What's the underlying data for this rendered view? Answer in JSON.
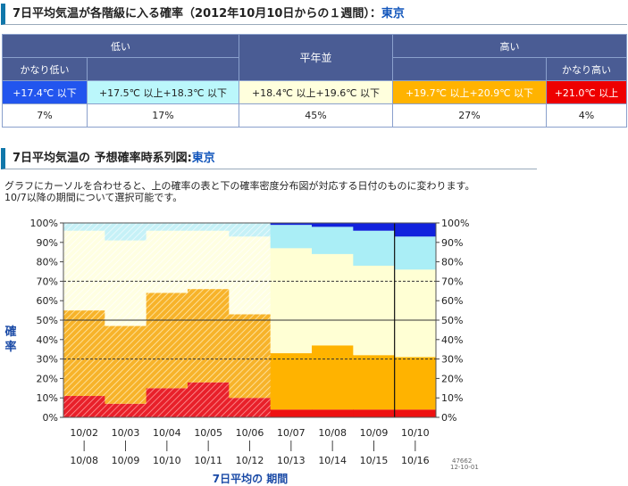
{
  "table_section": {
    "title": "7日平均気温が各階級に入る確率（2012年10月10日からの１週間）：",
    "location": "東京"
  },
  "categories": {
    "low": "低い",
    "normal": "平年並",
    "high": "高い",
    "very_low": "かなり低い",
    "very_high": "かなり高い"
  },
  "ranges": [
    {
      "label": "+17.4℃ 以下",
      "bg": "#2255ee",
      "fg": "#ffffff"
    },
    {
      "label": "+17.5℃ 以上+18.3℃ 以下",
      "bg": "#bbf7fb",
      "fg": "#222222"
    },
    {
      "label": "+18.4℃ 以上+19.6℃ 以下",
      "bg": "#ffffdd",
      "fg": "#222222"
    },
    {
      "label": "+19.7℃ 以上+20.9℃ 以下",
      "bg": "#ffb300",
      "fg": "#ffffff"
    },
    {
      "label": "+21.0℃ 以上",
      "bg": "#ee0000",
      "fg": "#ffffff"
    }
  ],
  "probabilities": [
    "7%",
    "17%",
    "45%",
    "27%",
    "4%"
  ],
  "timeseries_section": {
    "title": "7日平均気温の 予想確率時系列図:",
    "location": "東京"
  },
  "note_line1": "グラフにカーソルを合わせると、上の確率の表と下の確率密度分布図が対応する日付のものに変わります。",
  "note_line2": "10/7以降の期間について選択可能です。",
  "chart_data": {
    "type": "area",
    "ylabel_left": "確率",
    "xlabel": "7日平均の 期間",
    "stamp_line1": "47662",
    "stamp_line2": "12-10-01",
    "y_ticks_left": [
      "0%",
      "10%",
      "20%",
      "30%",
      "40%",
      "50%",
      "60%",
      "70%",
      "80%",
      "90%",
      "100%"
    ],
    "y_ticks_right": [
      "100%",
      "90%",
      "80%",
      "70%",
      "60%",
      "50%",
      "40%",
      "30%",
      "20%",
      "10%",
      "0%"
    ],
    "periods": [
      {
        "start": "10/02",
        "end": "10/08"
      },
      {
        "start": "10/03",
        "end": "10/09"
      },
      {
        "start": "10/04",
        "end": "10/10"
      },
      {
        "start": "10/05",
        "end": "10/11"
      },
      {
        "start": "10/06",
        "end": "10/12"
      },
      {
        "start": "10/07",
        "end": "10/13"
      },
      {
        "start": "10/08",
        "end": "10/14"
      },
      {
        "start": "10/09",
        "end": "10/15"
      },
      {
        "start": "10/10",
        "end": "10/16"
      }
    ],
    "cumulative_from_bottom": {
      "very_high": [
        11,
        7,
        15,
        18,
        10,
        4,
        4,
        4,
        4
      ],
      "high_and_above": [
        55,
        47,
        64,
        66,
        53,
        33,
        37,
        32,
        31
      ],
      "normal_and_above": [
        96,
        91,
        96,
        96,
        93,
        87,
        84,
        78,
        76
      ],
      "low_and_above": [
        100,
        100,
        100,
        100,
        100,
        99,
        98,
        96,
        93
      ]
    },
    "observed_periods": 5,
    "selected_period": 8,
    "ylim": [
      0,
      100
    ],
    "dashed_lines_at": [
      30,
      70
    ],
    "solid_line_at": 50,
    "colors": {
      "very_low": "#1122dd",
      "low": "#aaeef6",
      "normal": "#ffffd4",
      "high": "#ffb300",
      "very_high": "#ee1111"
    }
  }
}
